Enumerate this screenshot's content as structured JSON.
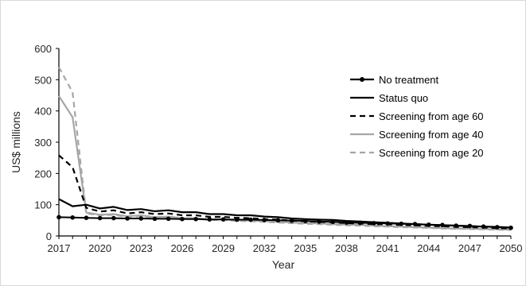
{
  "chart_data": {
    "type": "line",
    "title": "",
    "xlabel": "Year",
    "ylabel": "US$ millions",
    "xlim": [
      2017,
      2050
    ],
    "ylim": [
      0,
      600
    ],
    "x_ticks": [
      2017,
      2020,
      2023,
      2026,
      2029,
      2032,
      2035,
      2038,
      2041,
      2044,
      2047,
      2050
    ],
    "y_ticks": [
      0,
      100,
      200,
      300,
      400,
      500,
      600
    ],
    "grid": false,
    "legend_position": "right",
    "x": [
      2017,
      2018,
      2019,
      2020,
      2021,
      2022,
      2023,
      2024,
      2025,
      2026,
      2027,
      2028,
      2029,
      2030,
      2031,
      2032,
      2033,
      2034,
      2035,
      2036,
      2037,
      2038,
      2039,
      2040,
      2041,
      2042,
      2043,
      2044,
      2045,
      2046,
      2047,
      2048,
      2049,
      2050
    ],
    "series": [
      {
        "name": "No treatment",
        "style": "solid-markers",
        "color": "#000000",
        "values": [
          60,
          59,
          58,
          57,
          57,
          56,
          56,
          55,
          55,
          54,
          54,
          53,
          53,
          52,
          52,
          51,
          50,
          49,
          48,
          46,
          45,
          43,
          42,
          41,
          40,
          39,
          38,
          36,
          35,
          33,
          32,
          30,
          28,
          26
        ]
      },
      {
        "name": "Status quo",
        "style": "solid",
        "color": "#000000",
        "values": [
          118,
          95,
          100,
          88,
          93,
          83,
          86,
          79,
          82,
          76,
          76,
          70,
          70,
          66,
          66,
          62,
          60,
          56,
          54,
          52,
          51,
          48,
          46,
          44,
          42,
          40,
          38,
          36,
          34,
          33,
          31,
          30,
          29,
          27
        ]
      },
      {
        "name": "Screening from age 60",
        "style": "dashed",
        "color": "#000000",
        "values": [
          258,
          220,
          90,
          78,
          82,
          72,
          76,
          70,
          72,
          66,
          66,
          61,
          61,
          58,
          57,
          54,
          52,
          49,
          47,
          45,
          44,
          41,
          40,
          38,
          37,
          35,
          34,
          32,
          31,
          29,
          28,
          27,
          25,
          24
        ]
      },
      {
        "name": "Screening from age 40",
        "style": "solid",
        "color": "#a6a6a6",
        "values": [
          448,
          380,
          75,
          68,
          70,
          63,
          66,
          60,
          62,
          57,
          57,
          53,
          53,
          50,
          49,
          47,
          45,
          43,
          41,
          40,
          38,
          36,
          35,
          33,
          31,
          30,
          28,
          27,
          25,
          24,
          23,
          22,
          21,
          20
        ]
      },
      {
        "name": "Screening from age 20",
        "style": "dashed",
        "color": "#a6a6a6",
        "values": [
          540,
          460,
          72,
          66,
          68,
          61,
          63,
          58,
          60,
          55,
          55,
          51,
          51,
          48,
          47,
          45,
          43,
          41,
          39,
          38,
          36,
          34,
          33,
          31,
          30,
          28,
          27,
          26,
          24,
          23,
          22,
          21,
          20,
          19
        ]
      }
    ]
  }
}
